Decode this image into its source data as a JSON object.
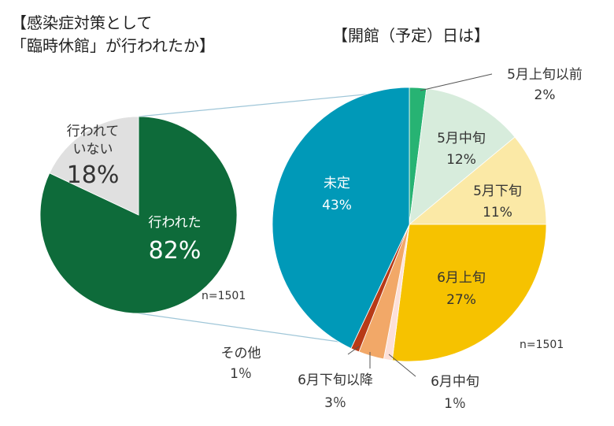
{
  "chart_data": [
    {
      "type": "pie",
      "title_line1": "【感染症対策として",
      "title_line2": "「臨時休館」が行われたか】",
      "n_label": "n=1501",
      "slices": [
        {
          "label": "行われた",
          "value": 82,
          "value_label": "82%",
          "color": "#0e6b3a"
        },
        {
          "label_line1": "行われて",
          "label_line2": "いない",
          "value": 18,
          "value_label": "18%",
          "color": "#e0e0e0"
        }
      ]
    },
    {
      "type": "pie",
      "title": "【開館（予定）日は】",
      "n_label": "n=1501",
      "slices": [
        {
          "label": "5月上旬以前",
          "value": 2,
          "value_label": "2%",
          "color": "#27b373"
        },
        {
          "label": "5月中旬",
          "value": 12,
          "value_label": "12%",
          "color": "#d7ecdc"
        },
        {
          "label": "5月下旬",
          "value": 11,
          "value_label": "11%",
          "color": "#fbe9a6"
        },
        {
          "label": "6月上旬",
          "value": 27,
          "value_label": "27%",
          "color": "#f6c200"
        },
        {
          "label": "6月中旬",
          "value": 1,
          "value_label": "1％",
          "color": "#fde0d8"
        },
        {
          "label": "6月下旬以降",
          "value": 3,
          "value_label": "3％",
          "color": "#f2a868"
        },
        {
          "label": "その他",
          "value": 1,
          "value_label": "1％",
          "color": "#b83a17"
        },
        {
          "label": "未定",
          "value": 43,
          "value_label": "43%",
          "color": "#0099b8"
        }
      ]
    }
  ]
}
